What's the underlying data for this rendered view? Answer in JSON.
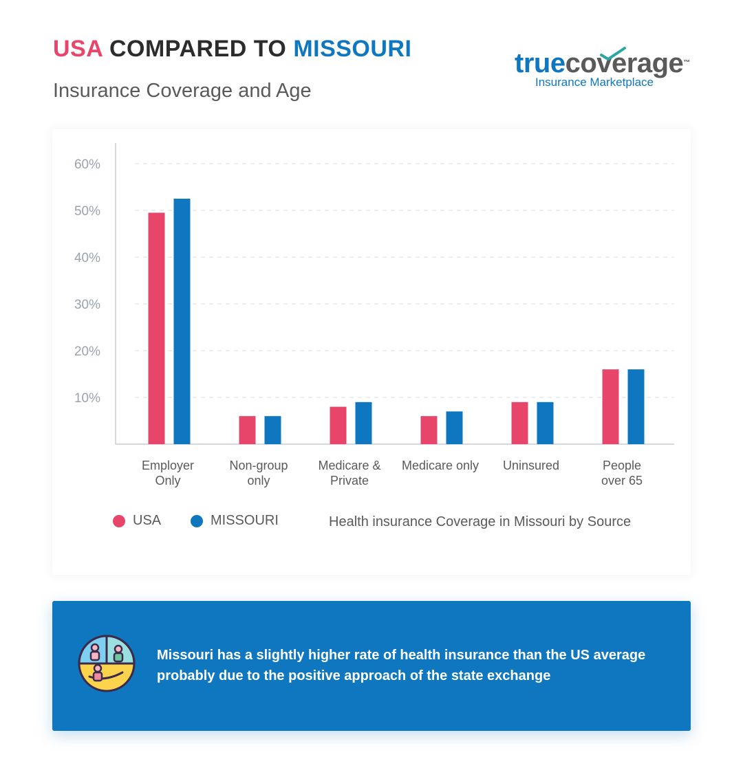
{
  "header": {
    "title_usa": "USA",
    "title_mid": "COMPARED TO",
    "title_state": "MISSOURI",
    "subtitle": "Insurance Coverage and Age"
  },
  "logo": {
    "word_true": "true",
    "word_coverage": "coverage",
    "trademark": "™",
    "tagline": "Insurance Marketplace"
  },
  "colors": {
    "usa": "#e8456b",
    "missouri": "#0e77bf",
    "grid": "#d9dde2",
    "axis": "#c7ccd2",
    "tick_text": "#9aa3ae",
    "cat_text": "#5a5a5a"
  },
  "chart_data": {
    "type": "bar",
    "categories": [
      [
        "Employer",
        "Only"
      ],
      [
        "Non-group",
        "only"
      ],
      [
        "Medicare &",
        "Private"
      ],
      [
        "Medicare only"
      ],
      [
        "Uninsured"
      ],
      [
        "People",
        "over 65"
      ]
    ],
    "series": [
      {
        "name": "USA",
        "values": [
          49.5,
          6,
          8,
          6,
          9,
          16
        ]
      },
      {
        "name": "MISSOURI",
        "values": [
          52.5,
          6,
          9,
          7,
          9,
          16
        ]
      }
    ],
    "yticks": [
      "10%",
      "20%",
      "30%",
      "40%",
      "50%",
      "60%"
    ],
    "ytick_values": [
      10,
      20,
      30,
      40,
      50,
      60
    ],
    "ylim": [
      0,
      60
    ],
    "grid": true,
    "legend_position": "bottom-left"
  },
  "legend": {
    "usa_label": "USA",
    "missouri_label": "MISSOURI",
    "caption": "Health insurance Coverage in Missouri by Source"
  },
  "info": {
    "icon": "people-pie-icon",
    "text": "Missouri has a slightly higher rate of health insurance than the US average probably due to the positive approach of the state exchange"
  }
}
